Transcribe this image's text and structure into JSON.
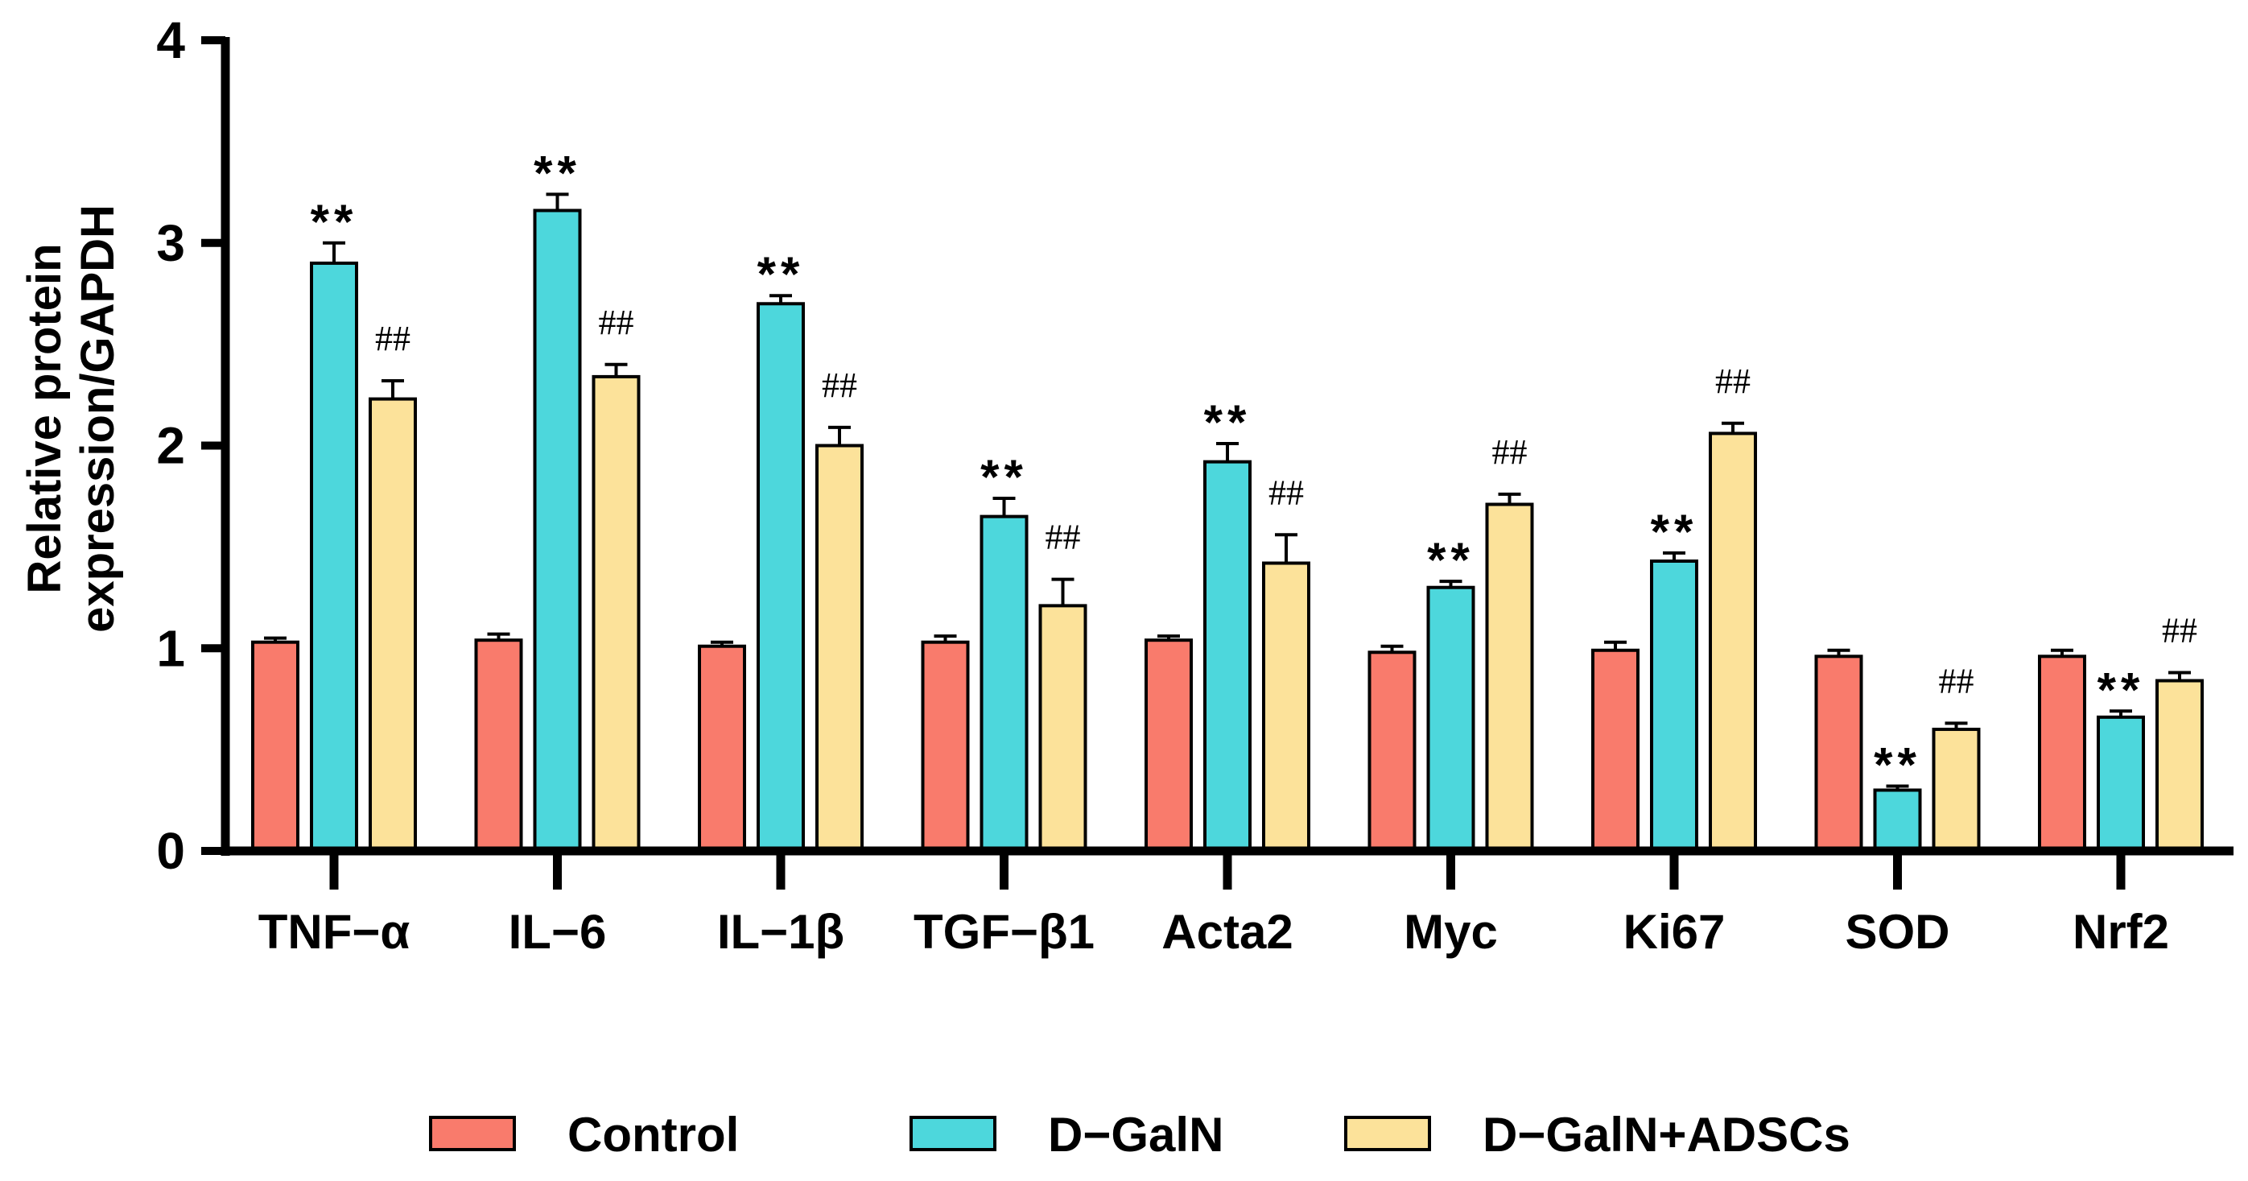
{
  "chart_data": {
    "type": "bar",
    "title": "",
    "xlabel": "",
    "ylabel": [
      "Relative protein",
      "expression/GAPDH"
    ],
    "ylim": [
      0,
      4
    ],
    "yticks": [
      "0",
      "1",
      "2",
      "3",
      "4"
    ],
    "categories": [
      "TNF−α",
      "IL−6",
      "IL−1β",
      "TGF−β1",
      "Acta2",
      "Myc",
      "Ki67",
      "SOD",
      "Nrf2"
    ],
    "series": [
      {
        "name": "Control",
        "color": "#F97B6C",
        "values": [
          1.03,
          1.04,
          1.01,
          1.03,
          1.04,
          0.98,
          0.99,
          0.96,
          0.96
        ],
        "errors": [
          0.02,
          0.03,
          0.02,
          0.03,
          0.02,
          0.03,
          0.04,
          0.03,
          0.03
        ],
        "annotations": [
          "",
          "",
          "",
          "",
          "",
          "",
          "",
          "",
          ""
        ]
      },
      {
        "name": "D−GalN",
        "color": "#4DD7DC",
        "values": [
          2.9,
          3.16,
          2.7,
          1.65,
          1.92,
          1.3,
          1.43,
          0.3,
          0.66
        ],
        "errors": [
          0.1,
          0.08,
          0.04,
          0.09,
          0.09,
          0.03,
          0.04,
          0.02,
          0.03
        ],
        "annotations": [
          "**",
          "**",
          "**",
          "**",
          "**",
          "**",
          "**",
          "**",
          "**"
        ]
      },
      {
        "name": "D−GalN+ADSCs",
        "color": "#FCE29A",
        "values": [
          2.23,
          2.34,
          2.0,
          1.21,
          1.42,
          1.71,
          2.06,
          0.6,
          0.84
        ],
        "errors": [
          0.09,
          0.06,
          0.09,
          0.13,
          0.14,
          0.05,
          0.05,
          0.03,
          0.04
        ],
        "annotations": [
          "##",
          "##",
          "##",
          "##",
          "##",
          "##",
          "##",
          "##",
          "##"
        ]
      }
    ],
    "legend": {
      "position": "bottom",
      "entries": [
        "Control",
        "D−GalN",
        "D−GalN+ADSCs"
      ]
    }
  }
}
